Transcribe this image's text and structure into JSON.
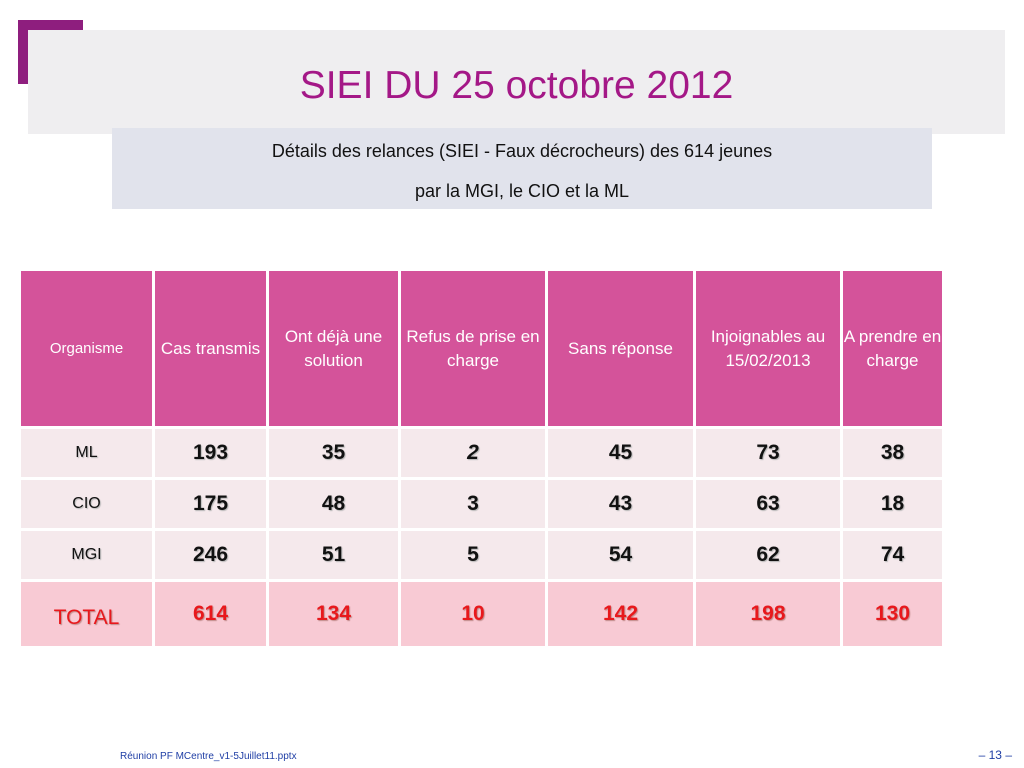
{
  "slide": {
    "title": "SIEI DU 25 octobre 2012",
    "subtitle_line1": "Détails des relances (SIEI - Faux décrocheurs) des 614  jeunes",
    "subtitle_line2": "par la MGI, le CIO et la ML"
  },
  "table": {
    "headers": [
      "Organisme",
      "Cas transmis",
      "Ont déjà une solution",
      "Refus de prise en charge",
      "Sans réponse",
      "Injoignables au 15/02/2013",
      "A prendre en charge"
    ],
    "rows": [
      {
        "label": "ML",
        "values": [
          "193",
          "35",
          "2",
          "45",
          "73",
          "38"
        ]
      },
      {
        "label": "CIO",
        "values": [
          "175",
          "48",
          "3",
          "43",
          "63",
          "18"
        ]
      },
      {
        "label": "MGI",
        "values": [
          "246",
          "51",
          "5",
          "54",
          "62",
          "74"
        ]
      }
    ],
    "total": {
      "label": "TOTAL",
      "values": [
        "614",
        "134",
        "10",
        "142",
        "198",
        "130"
      ]
    }
  },
  "footer": {
    "filename": "Réunion PF MCentre_v1-5Juillet11.pptx",
    "page": "– 13 –"
  },
  "colors": {
    "title": "#a41887",
    "corner_accent": "#8e1e7e",
    "header_fill": "#d4539a",
    "row_fill": "#f5e9ec",
    "total_fill": "#f8cad4",
    "total_text": "#e8181c",
    "footer_text": "#1f3ea5"
  }
}
